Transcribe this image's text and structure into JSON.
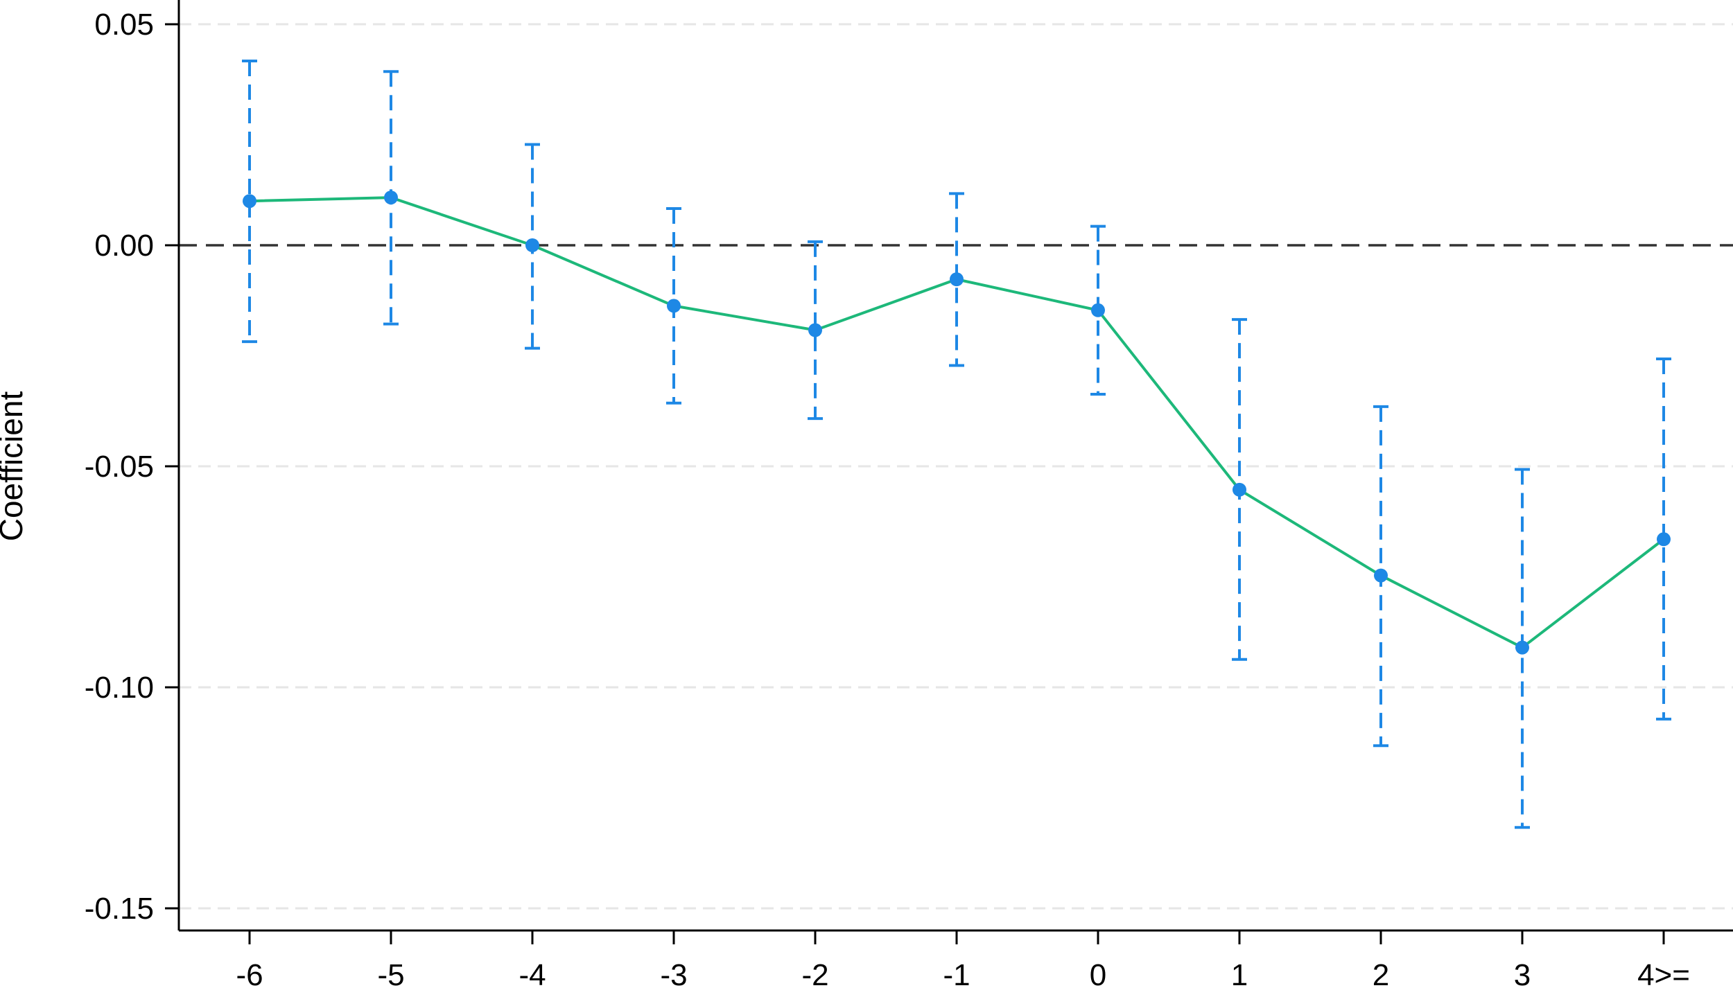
{
  "chart_data": {
    "type": "line",
    "title": "",
    "xlabel": "",
    "ylabel": "Coefficient",
    "categories": [
      "-6",
      "-5",
      "-4",
      "-3",
      "-2",
      "-1",
      "0",
      "1",
      "2",
      "3",
      "4>="
    ],
    "series": [
      {
        "values": [
          0.01,
          0.0108,
          0.0,
          -0.0137,
          -0.0192,
          -0.0077,
          -0.0147,
          -0.0553,
          -0.0747,
          -0.091,
          -0.0665
        ],
        "ci_lower": [
          -0.0218,
          -0.0178,
          -0.0233,
          -0.0357,
          -0.0392,
          -0.0272,
          -0.0337,
          -0.0937,
          -0.1132,
          -0.1317,
          -0.1072
        ],
        "ci_upper": [
          0.0417,
          0.0393,
          0.0228,
          0.0083,
          0.0008,
          0.0117,
          0.0043,
          -0.0168,
          -0.0365,
          -0.0507,
          -0.0257
        ]
      }
    ],
    "y_ticks": [
      "0.05",
      "0.00",
      "-0.05",
      "-0.10",
      "-0.15"
    ],
    "y_tick_values": [
      0.05,
      0.0,
      -0.05,
      -0.1,
      -0.15
    ],
    "ylim": [
      -0.155,
      0.055
    ],
    "reference_line": 0,
    "grid": true,
    "legend": "none",
    "colors": {
      "line": "#1db87a",
      "marker": "#1e88e5",
      "ci": "#1e88e5",
      "reference": "#333333",
      "grid": "#e6e6e6",
      "axis": "#000000"
    }
  }
}
